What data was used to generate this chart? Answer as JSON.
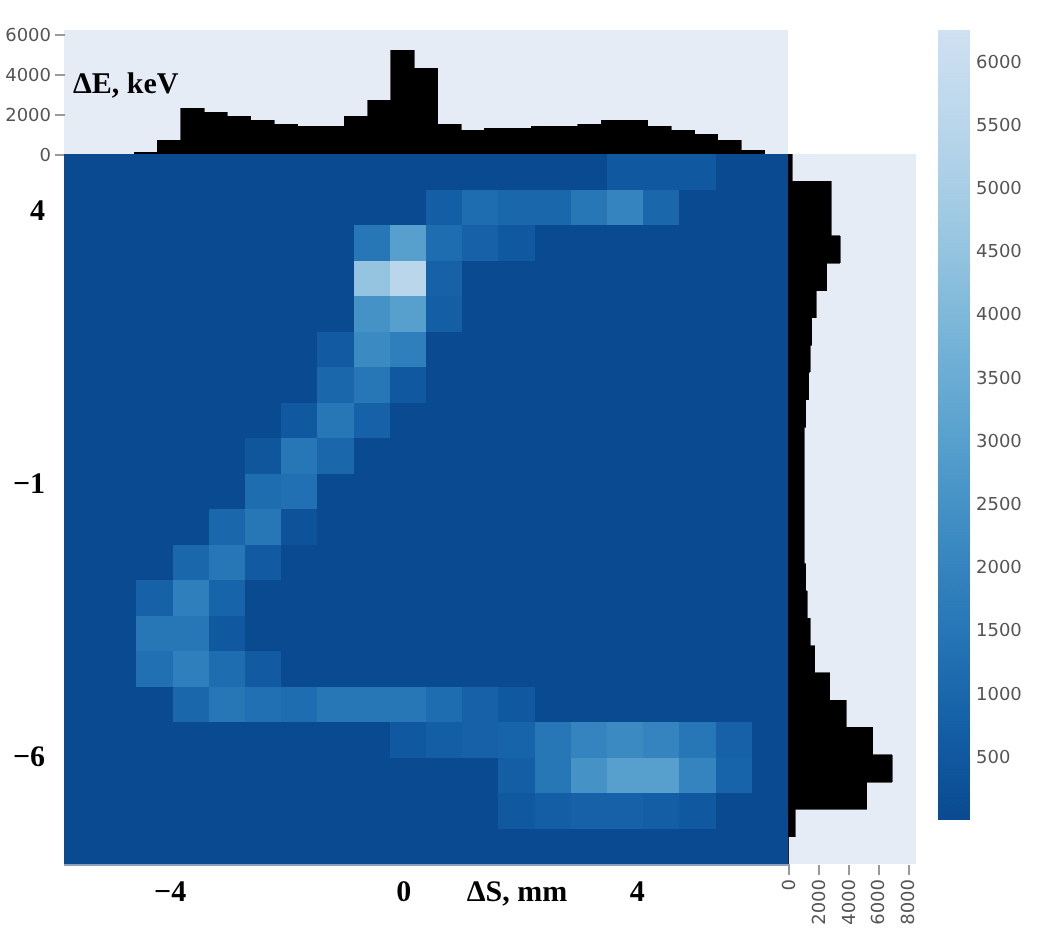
{
  "chart_data": [
    {
      "type": "histogram",
      "color": "#000000",
      "tick_labels": "y",
      "bins": [
        -5.8,
        -5.4,
        -5.0,
        -4.6,
        -4.2,
        -3.8,
        -3.4,
        -3.0,
        -2.6,
        -2.2,
        -1.8,
        -1.4,
        -1.0,
        -0.6,
        -0.2,
        0.2,
        0.6,
        1.0,
        1.4,
        1.8,
        2.2,
        2.6,
        3.0,
        3.4,
        3.8,
        4.2,
        4.6,
        5.0,
        5.4,
        5.8,
        6.2,
        6.6
      ],
      "values": [
        0,
        0,
        0,
        100,
        700,
        2300,
        2100,
        1900,
        1700,
        1500,
        1400,
        1400,
        1900,
        2700,
        5200,
        4300,
        1500,
        1200,
        1300,
        1300,
        1400,
        1400,
        1500,
        1700,
        1700,
        1400,
        1200,
        1000,
        700,
        200,
        0
      ],
      "xlim": [
        -5.8,
        6.6
      ],
      "ylim": [
        0,
        6200
      ],
      "yticks": [
        0,
        2000,
        4000,
        6000
      ]
    },
    {
      "type": "heatmap",
      "xlabel": "ΔS, mm",
      "ylabel": "ΔE, keV",
      "xlim": [
        -5.8,
        6.6
      ],
      "xticks": [
        -4,
        0,
        4
      ],
      "ylim": [
        -8,
        5
      ],
      "yticks": [
        -6,
        -1,
        4
      ],
      "clim": [
        0,
        6250
      ],
      "cticks": [
        500,
        1000,
        1500,
        2000,
        2500,
        3000,
        3500,
        4000,
        4500,
        5000,
        5500,
        6000
      ],
      "cells": [
        [
          0,
          0,
          0,
          0,
          0,
          0,
          0,
          0,
          0,
          0,
          0,
          0,
          0,
          0,
          0,
          500,
          500,
          500,
          0,
          0
        ],
        [
          0,
          0,
          0,
          0,
          0,
          0,
          0,
          0,
          0,
          0,
          700,
          1200,
          1000,
          1000,
          1500,
          2000,
          1000,
          0,
          0,
          0
        ],
        [
          0,
          0,
          0,
          0,
          0,
          0,
          0,
          0,
          1500,
          3000,
          1200,
          800,
          500,
          0,
          0,
          0,
          0,
          0,
          0,
          0
        ],
        [
          0,
          0,
          0,
          0,
          0,
          0,
          0,
          0,
          4500,
          5500,
          800,
          0,
          0,
          0,
          0,
          0,
          0,
          0,
          0,
          0
        ],
        [
          0,
          0,
          0,
          0,
          0,
          0,
          0,
          0,
          2500,
          3000,
          700,
          0,
          0,
          0,
          0,
          0,
          0,
          0,
          0,
          0
        ],
        [
          0,
          0,
          0,
          0,
          0,
          0,
          0,
          600,
          2200,
          1800,
          0,
          0,
          0,
          0,
          0,
          0,
          0,
          0,
          0,
          0
        ],
        [
          0,
          0,
          0,
          0,
          0,
          0,
          0,
          1000,
          1500,
          500,
          0,
          0,
          0,
          0,
          0,
          0,
          0,
          0,
          0,
          0
        ],
        [
          0,
          0,
          0,
          0,
          0,
          0,
          500,
          1500,
          800,
          0,
          0,
          0,
          0,
          0,
          0,
          0,
          0,
          0,
          0,
          0
        ],
        [
          0,
          0,
          0,
          0,
          0,
          400,
          1500,
          1000,
          0,
          0,
          0,
          0,
          0,
          0,
          0,
          0,
          0,
          0,
          0,
          0
        ],
        [
          0,
          0,
          0,
          0,
          0,
          1200,
          1300,
          0,
          0,
          0,
          0,
          0,
          0,
          0,
          0,
          0,
          0,
          0,
          0,
          0
        ],
        [
          0,
          0,
          0,
          0,
          1000,
          1500,
          300,
          0,
          0,
          0,
          0,
          0,
          0,
          0,
          0,
          0,
          0,
          0,
          0,
          0
        ],
        [
          0,
          0,
          0,
          1000,
          1500,
          600,
          0,
          0,
          0,
          0,
          0,
          0,
          0,
          0,
          0,
          0,
          0,
          0,
          0,
          0
        ],
        [
          0,
          0,
          800,
          1800,
          900,
          0,
          0,
          0,
          0,
          0,
          0,
          0,
          0,
          0,
          0,
          0,
          0,
          0,
          0,
          0
        ],
        [
          0,
          0,
          1500,
          1500,
          500,
          0,
          0,
          0,
          0,
          0,
          0,
          0,
          0,
          0,
          0,
          0,
          0,
          0,
          0,
          0
        ],
        [
          0,
          0,
          1300,
          1800,
          1200,
          600,
          0,
          0,
          0,
          0,
          0,
          0,
          0,
          0,
          0,
          0,
          0,
          0,
          0,
          0
        ],
        [
          0,
          0,
          0,
          1000,
          1500,
          1300,
          1200,
          1500,
          1500,
          1500,
          1200,
          800,
          500,
          0,
          0,
          0,
          0,
          0,
          0,
          0
        ],
        [
          0,
          0,
          0,
          0,
          0,
          0,
          0,
          0,
          0,
          500,
          700,
          800,
          900,
          1500,
          2000,
          2200,
          2000,
          1500,
          800,
          0
        ],
        [
          0,
          0,
          0,
          0,
          0,
          0,
          0,
          0,
          0,
          0,
          0,
          0,
          700,
          1500,
          2500,
          3000,
          3000,
          2000,
          900,
          0
        ],
        [
          0,
          0,
          0,
          0,
          0,
          0,
          0,
          0,
          0,
          0,
          0,
          0,
          500,
          700,
          800,
          800,
          700,
          500,
          0,
          0
        ],
        [
          0,
          0,
          0,
          0,
          0,
          0,
          0,
          0,
          0,
          0,
          0,
          0,
          0,
          0,
          0,
          0,
          0,
          0,
          0,
          0
        ]
      ]
    },
    {
      "type": "histogram",
      "orientation": "horizontal",
      "color": "#000000",
      "tick_labels": "x",
      "bins": [
        -8,
        -7.5,
        -7,
        -6.5,
        -6,
        -5.5,
        -5,
        -4.5,
        -4,
        -3.5,
        -3,
        -2.5,
        -2,
        -1.5,
        -1,
        -0.5,
        0,
        0.5,
        1,
        1.5,
        2,
        2.5,
        3,
        3.5,
        4,
        4.5,
        5
      ],
      "values": [
        0,
        500,
        5300,
        7000,
        5700,
        3900,
        2800,
        1800,
        1500,
        1300,
        1200,
        1100,
        1100,
        1100,
        1100,
        1100,
        1200,
        1400,
        1500,
        1600,
        1900,
        2600,
        3500,
        2900,
        2900,
        300
      ],
      "ylim": [
        -8,
        5
      ],
      "xlim": [
        0,
        8600
      ],
      "xticks": [
        0,
        2000,
        4000,
        6000,
        8000
      ]
    }
  ]
}
